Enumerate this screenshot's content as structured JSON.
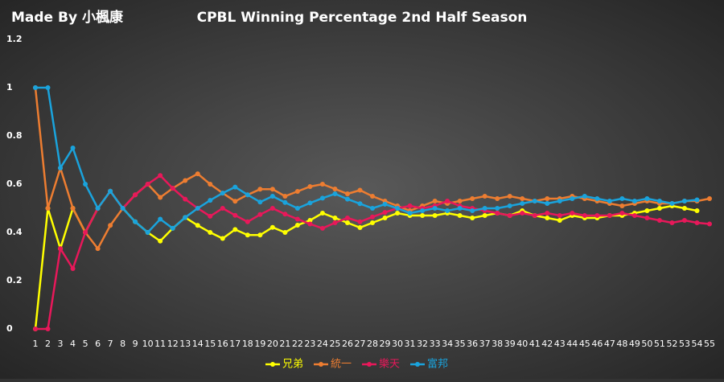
{
  "chart_data": {
    "type": "line",
    "watermark": "Made By 小楓康",
    "title": "CPBL Winning Percentage 2nd Half Season",
    "categories": [
      "1",
      "2",
      "3",
      "4",
      "5",
      "6",
      "7",
      "8",
      "9",
      "10",
      "11",
      "12",
      "13",
      "14",
      "15",
      "16",
      "17",
      "18",
      "19",
      "20",
      "21",
      "22",
      "23",
      "24",
      "25",
      "26",
      "27",
      "28",
      "29",
      "30",
      "31",
      "32",
      "33",
      "34",
      "35",
      "36",
      "37",
      "38",
      "39",
      "40",
      "41",
      "42",
      "43",
      "44",
      "45",
      "46",
      "47",
      "48",
      "49",
      "50",
      "51",
      "52",
      "53",
      "54",
      "55"
    ],
    "ylim": [
      0,
      1.2
    ],
    "yticks": [
      0,
      0.2,
      0.4,
      0.6,
      0.8,
      1,
      1.2
    ],
    "grid": false,
    "legend": "bottom",
    "series": [
      {
        "name": "兄弟",
        "color": "#ffff00",
        "values": [
          0,
          0.5,
          0.333,
          0.5,
          0.4,
          0.5,
          0.571,
          0.5,
          0.444,
          0.4,
          0.364,
          0.417,
          0.462,
          0.429,
          0.4,
          0.375,
          0.412,
          0.389,
          0.389,
          0.421,
          0.4,
          0.43,
          0.45,
          0.48,
          0.46,
          0.44,
          0.42,
          0.44,
          0.46,
          0.48,
          0.47,
          0.47,
          0.47,
          0.48,
          0.47,
          0.46,
          0.47,
          0.48,
          0.47,
          0.49,
          0.47,
          0.46,
          0.45,
          0.47,
          0.46,
          0.46,
          0.47,
          0.47,
          0.48,
          0.49,
          0.5,
          0.51,
          0.5,
          0.49,
          null
        ]
      },
      {
        "name": "統一",
        "color": "#ed7d31",
        "values": [
          1,
          0.5,
          0.667,
          0.5,
          0.4,
          0.333,
          0.429,
          0.5,
          0.556,
          0.6,
          0.545,
          0.583,
          0.615,
          0.643,
          0.6,
          0.563,
          0.529,
          0.556,
          0.579,
          0.579,
          0.55,
          0.57,
          0.59,
          0.6,
          0.58,
          0.56,
          0.575,
          0.55,
          0.53,
          0.51,
          0.49,
          0.51,
          0.53,
          0.52,
          0.53,
          0.54,
          0.55,
          0.54,
          0.55,
          0.54,
          0.53,
          0.54,
          0.54,
          0.55,
          0.54,
          0.53,
          0.52,
          0.51,
          0.52,
          0.53,
          0.52,
          0.52,
          0.53,
          0.53,
          0.54
        ]
      },
      {
        "name": "樂天",
        "color": "#e8185a",
        "values": [
          0,
          0,
          0.333,
          0.25,
          0.4,
          0.5,
          0.571,
          0.5,
          0.556,
          0.6,
          0.636,
          0.583,
          0.538,
          0.5,
          0.467,
          0.5,
          0.471,
          0.444,
          0.474,
          0.5,
          0.476,
          0.455,
          0.435,
          0.417,
          0.44,
          0.46,
          0.444,
          0.464,
          0.483,
          0.5,
          0.51,
          0.5,
          0.51,
          0.53,
          0.51,
          0.5,
          0.49,
          0.48,
          0.47,
          0.48,
          0.47,
          0.48,
          0.47,
          0.48,
          0.47,
          0.47,
          0.47,
          0.48,
          0.47,
          0.46,
          0.45,
          0.44,
          0.45,
          0.44,
          0.435
        ]
      },
      {
        "name": "富邦",
        "color": "#1aa3dc",
        "values": [
          1,
          1,
          0.667,
          0.75,
          0.6,
          0.5,
          0.571,
          0.5,
          0.444,
          0.4,
          0.455,
          0.417,
          0.462,
          0.5,
          0.533,
          0.563,
          0.588,
          0.556,
          0.526,
          0.55,
          0.524,
          0.5,
          0.522,
          0.542,
          0.56,
          0.538,
          0.519,
          0.5,
          0.517,
          0.5,
          0.48,
          0.49,
          0.5,
          0.49,
          0.5,
          0.49,
          0.5,
          0.5,
          0.51,
          0.52,
          0.53,
          0.52,
          0.53,
          0.54,
          0.55,
          0.54,
          0.53,
          0.54,
          0.53,
          0.54,
          0.53,
          0.52,
          0.53,
          0.535,
          null
        ]
      }
    ]
  }
}
